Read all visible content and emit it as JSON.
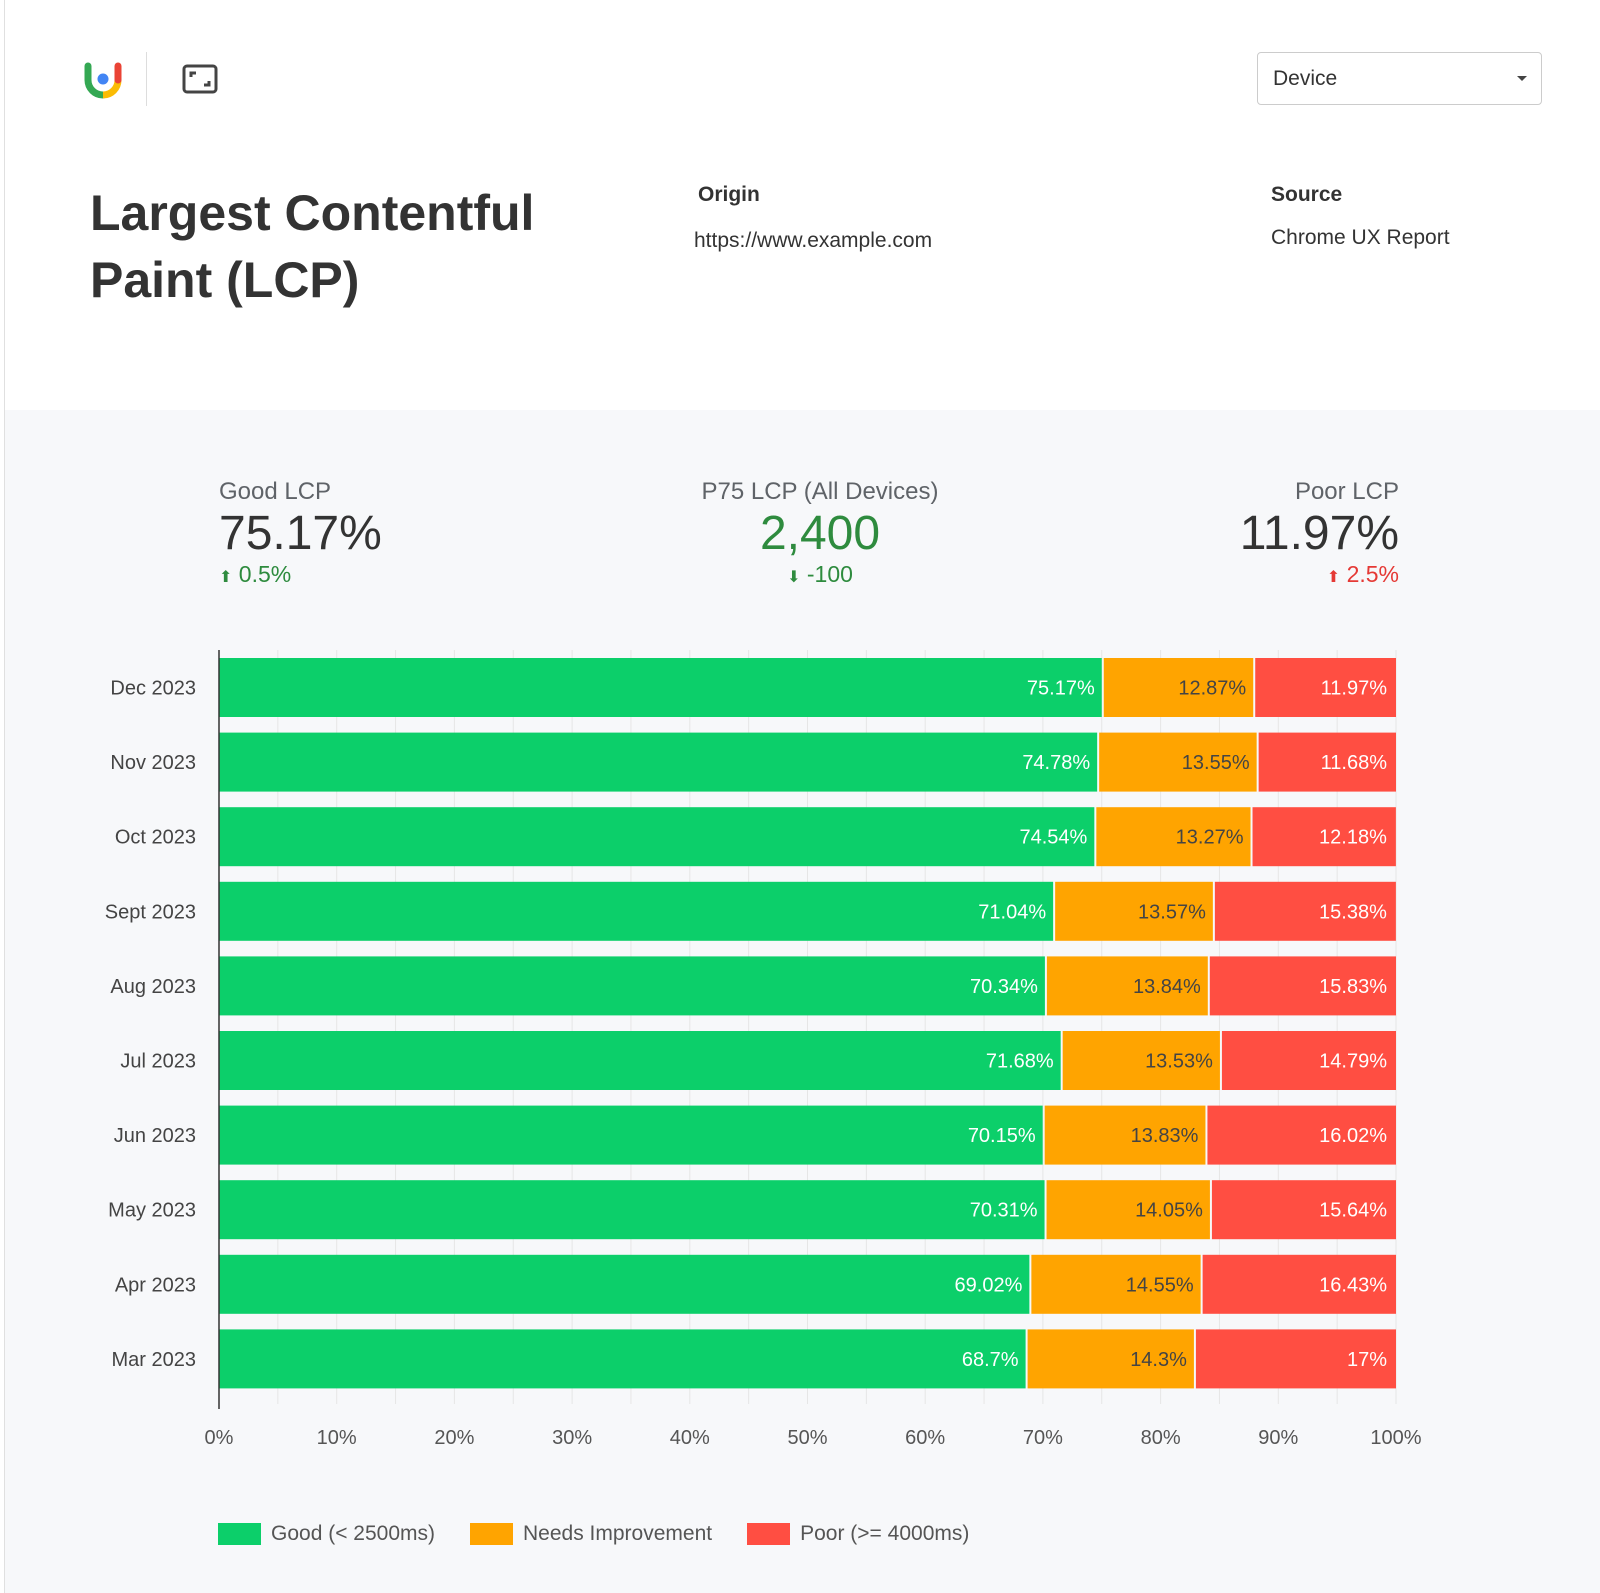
{
  "header": {
    "logo": "lighthouse-u-logo",
    "fullscreen_icon": "fullscreen-icon",
    "device_select": {
      "value": "Device"
    }
  },
  "title": "Largest Contentful Paint (LCP)",
  "origin": {
    "label": "Origin",
    "value": "https://www.example.com"
  },
  "source": {
    "label": "Source",
    "value": "Chrome UX Report"
  },
  "metrics": [
    {
      "label": "Good LCP",
      "value": "75.17%",
      "delta": "0.5%",
      "direction": "up",
      "color": "#2e8b3e"
    },
    {
      "label": "P75 LCP (All Devices)",
      "value": "2,400",
      "delta": "-100",
      "direction": "down",
      "color": "#2e8b3e"
    },
    {
      "label": "Poor LCP",
      "value": "11.97%",
      "delta": "2.5%",
      "direction": "up",
      "color": "#e53935"
    }
  ],
  "chart_data": {
    "type": "bar",
    "orientation": "horizontal",
    "stacked": true,
    "categories": [
      "Dec 2023",
      "Nov 2023",
      "Oct 2023",
      "Sept 2023",
      "Aug 2023",
      "Jul 2023",
      "Jun 2023",
      "May 2023",
      "Apr 2023",
      "Mar 2023"
    ],
    "series": [
      {
        "name": "Good (< 2500ms)",
        "color": "#0ccf6a",
        "values": [
          75.17,
          74.78,
          74.54,
          71.04,
          70.34,
          71.68,
          70.15,
          70.31,
          69.02,
          68.7
        ],
        "labels": [
          "75.17%",
          "74.78%",
          "74.54%",
          "71.04%",
          "70.34%",
          "71.68%",
          "70.15%",
          "70.31%",
          "69.02%",
          "68.7%"
        ]
      },
      {
        "name": "Needs Improvement",
        "color": "#ffa400",
        "values": [
          12.87,
          13.55,
          13.27,
          13.57,
          13.84,
          13.53,
          13.83,
          14.05,
          14.55,
          14.3
        ],
        "labels": [
          "12.87%",
          "13.55%",
          "13.27%",
          "13.57%",
          "13.84%",
          "13.53%",
          "13.83%",
          "14.05%",
          "14.55%",
          "14.3%"
        ]
      },
      {
        "name": "Poor (>= 4000ms)",
        "color": "#ff4e42",
        "values": [
          11.97,
          11.68,
          12.18,
          15.38,
          15.83,
          14.79,
          16.02,
          15.64,
          16.43,
          17
        ],
        "labels": [
          "11.97%",
          "11.68%",
          "12.18%",
          "15.38%",
          "15.83%",
          "14.79%",
          "16.02%",
          "15.64%",
          "16.43%",
          "17%"
        ]
      }
    ],
    "xlim": [
      0,
      100
    ],
    "xticks": [
      "0%",
      "10%",
      "20%",
      "30%",
      "40%",
      "50%",
      "60%",
      "70%",
      "80%",
      "90%",
      "100%"
    ],
    "grid": true,
    "legend": "bottom-left"
  }
}
